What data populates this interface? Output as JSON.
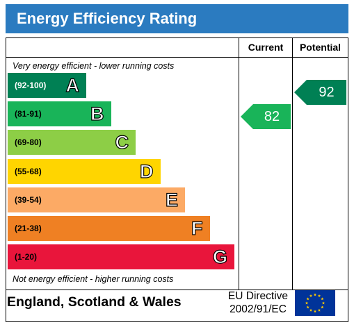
{
  "title": "Energy Efficiency Rating",
  "columns": {
    "current": "Current",
    "potential": "Potential"
  },
  "top_note": "Very energy efficient - lower running costs",
  "bottom_note": "Not energy efficient - higher running costs",
  "chart_data": {
    "type": "bar",
    "title": "Energy Efficiency Rating",
    "categories": [
      "A",
      "B",
      "C",
      "D",
      "E",
      "F",
      "G"
    ],
    "ranges": [
      "(92-100)",
      "(81-91)",
      "(69-80)",
      "(55-68)",
      "(39-54)",
      "(21-38)",
      "(1-20)"
    ],
    "band_colors": [
      "#008054",
      "#19b459",
      "#8dce46",
      "#ffd500",
      "#fcaa65",
      "#ef8023",
      "#e9153b"
    ],
    "current": {
      "value": 82,
      "band": "B",
      "color": "#19b459"
    },
    "potential": {
      "value": 92,
      "band": "A",
      "color": "#008054"
    }
  },
  "footer": {
    "region": "England, Scotland & Wales",
    "directive_line1": "EU Directive",
    "directive_line2": "2002/91/EC",
    "flag_color": "#003399",
    "star_color": "#ffcc00"
  }
}
